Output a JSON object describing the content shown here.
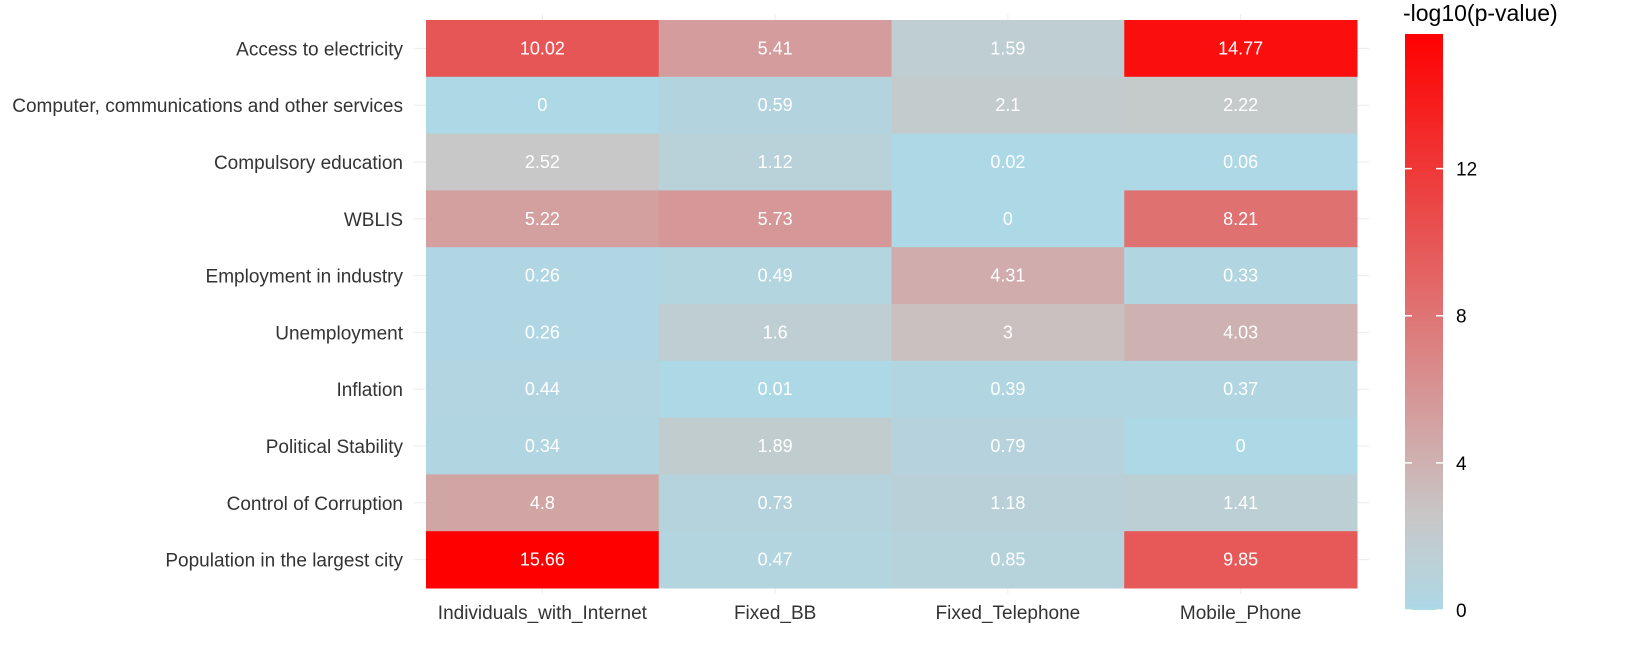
{
  "chart_data": {
    "type": "heatmap",
    "title": "",
    "xlabel": "",
    "ylabel": "",
    "x_categories": [
      "Individuals_with_Internet",
      "Fixed_BB",
      "Fixed_Telephone",
      "Mobile_Phone"
    ],
    "y_categories": [
      "Access to electricity",
      "Computer, communications and other services",
      "Compulsory education",
      "WBLIS",
      "Employment in industry",
      "Unemployment",
      "Inflation",
      "Political Stability",
      "Control of Corruption",
      "Population in the largest city"
    ],
    "values": [
      [
        10.02,
        5.41,
        1.59,
        14.77
      ],
      [
        0,
        0.59,
        2.1,
        2.22
      ],
      [
        2.52,
        1.12,
        0.02,
        0.06
      ],
      [
        5.22,
        5.73,
        0,
        8.21
      ],
      [
        0.26,
        0.49,
        4.31,
        0.33
      ],
      [
        0.26,
        1.6,
        3,
        4.03
      ],
      [
        0.44,
        0.01,
        0.39,
        0.37
      ],
      [
        0.34,
        1.89,
        0.79,
        0
      ],
      [
        4.8,
        0.73,
        1.18,
        1.41
      ],
      [
        15.66,
        0.47,
        0.85,
        9.85
      ]
    ],
    "value_labels": [
      [
        "10.02",
        "5.41",
        "1.59",
        "14.77"
      ],
      [
        "0",
        "0.59",
        "2.1",
        "2.22"
      ],
      [
        "2.52",
        "1.12",
        "0.02",
        "0.06"
      ],
      [
        "5.22",
        "5.73",
        "0",
        "8.21"
      ],
      [
        "0.26",
        "0.49",
        "4.31",
        "0.33"
      ],
      [
        "0.26",
        "1.6",
        "3",
        "4.03"
      ],
      [
        "0.44",
        "0.01",
        "0.39",
        "0.37"
      ],
      [
        "0.34",
        "1.89",
        "0.79",
        "0"
      ],
      [
        "4.8",
        "0.73",
        "1.18",
        "1.41"
      ],
      [
        "15.66",
        "0.47",
        "0.85",
        "9.85"
      ]
    ],
    "color_scale": {
      "low_color": "#add8e6",
      "mid_color": "#c8c8c8",
      "high_color": "#ff0000",
      "midpoint": 2.5,
      "range": [
        0,
        15.66
      ]
    },
    "legend": {
      "title": "-log10(p-value)",
      "placement": "right",
      "ticks": [
        0,
        4,
        8,
        12
      ],
      "tick_labels": [
        "0",
        "4",
        "8",
        "12"
      ]
    },
    "grid": true
  }
}
